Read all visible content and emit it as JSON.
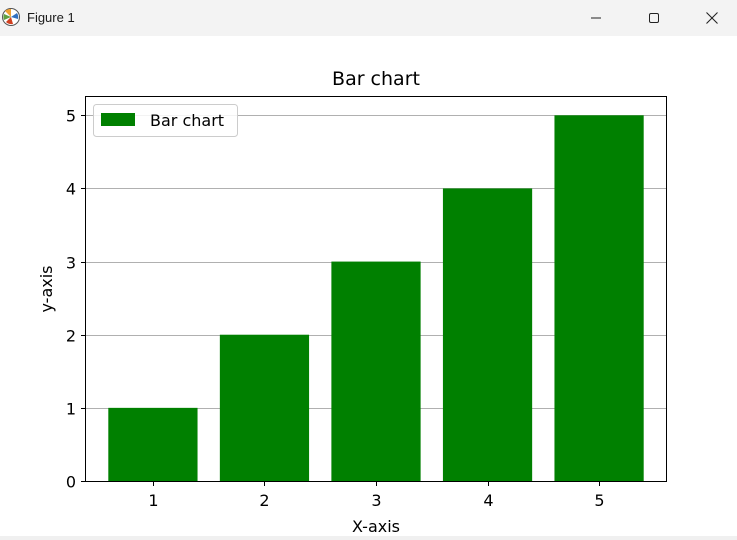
{
  "window": {
    "title": "Figure 1",
    "icon": "matplotlib-logo-icon",
    "controls": [
      "minimize-icon",
      "maximize-icon",
      "close-icon"
    ]
  },
  "chart_data": {
    "type": "bar",
    "title": "Bar chart",
    "xlabel": "X-axis",
    "ylabel": "y-axis",
    "categories": [
      "1",
      "2",
      "3",
      "4",
      "5"
    ],
    "x": [
      1,
      2,
      3,
      4,
      5
    ],
    "series": [
      {
        "name": "Bar chart",
        "values": [
          1,
          2,
          3,
          4,
          5
        ],
        "color": "#008000"
      }
    ],
    "xlim": [
      0.4,
      5.6
    ],
    "ylim": [
      0,
      5.25
    ],
    "yticks": [
      0,
      1,
      2,
      3,
      4,
      5
    ],
    "grid": {
      "axis": "y",
      "on": true
    },
    "legend": {
      "placement": "top-left"
    }
  }
}
